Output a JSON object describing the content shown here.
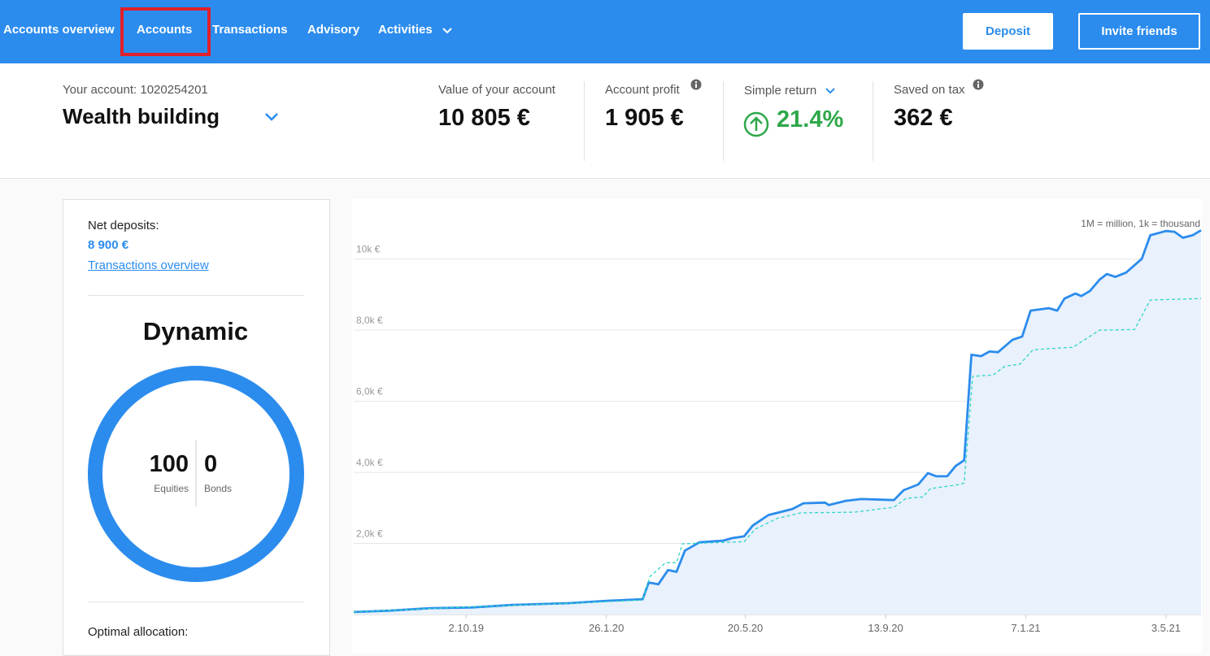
{
  "nav": {
    "items": [
      "Accounts overview",
      "Accounts",
      "Transactions",
      "Advisory",
      "Activities"
    ],
    "buttons": [
      "Deposit",
      "Invite friends"
    ]
  },
  "account": {
    "label": "Your account: 1020254201",
    "name": "Wealth building"
  },
  "stats": [
    {
      "label": "Value of your account",
      "value": "10 805 €"
    },
    {
      "label": "Account profit",
      "value": "1 905 €"
    },
    {
      "label": "Simple return",
      "value": "21.4%"
    },
    {
      "label": "Saved on tax",
      "value": "362 €"
    }
  ],
  "sidebar": {
    "net_deposits_label": "Net deposits:",
    "net_deposits": "8 900 €",
    "link": "Transactions overview",
    "strategy": "Dynamic",
    "equities": 100,
    "equities_label": "Equities",
    "bonds": 0,
    "bonds_label": "Bonds",
    "optimal": "Optimal allocation:"
  },
  "chart_data": {
    "type": "line",
    "note": "1M = million, 1k = thousand",
    "xlim": [
      "2019-07-01",
      "2021-06-01"
    ],
    "xticks": [
      {
        "value": "2019-10-02",
        "label": "2.10.19"
      },
      {
        "value": "2020-01-26",
        "label": "26.1.20"
      },
      {
        "value": "2020-05-20",
        "label": "20.5.20"
      },
      {
        "value": "2020-09-13",
        "label": "13.9.20"
      },
      {
        "value": "2021-01-07",
        "label": "7.1.21"
      },
      {
        "value": "2021-05-03",
        "label": "3.5.21"
      }
    ],
    "ylim": [
      0,
      11000
    ],
    "yticks": [
      {
        "value": 2000,
        "label": "2,0k €"
      },
      {
        "value": 4000,
        "label": "4,0k €"
      },
      {
        "value": 6000,
        "label": "6,0k €"
      },
      {
        "value": 8000,
        "label": "8,0k €"
      },
      {
        "value": 10000,
        "label": "10k €"
      }
    ],
    "grid": true,
    "series": [
      {
        "color": "#2b8ced",
        "style": "solid",
        "area": "#e8f1fc",
        "x": [
          "2019-07-01",
          "2019-07-31",
          "2019-09-03",
          "2019-10-06",
          "2019-11-09",
          "2019-12-26",
          "2020-01-29",
          "2020-02-25",
          "2020-03-01",
          "2020-03-09",
          "2020-03-17",
          "2020-03-24",
          "2020-03-31",
          "2020-04-12",
          "2020-05-02",
          "2020-05-09",
          "2020-05-19",
          "2020-05-26",
          "2020-06-08",
          "2020-06-28",
          "2020-07-07",
          "2020-07-25",
          "2020-07-28",
          "2020-08-11",
          "2020-08-24",
          "2020-09-20",
          "2020-09-28",
          "2020-10-10",
          "2020-10-18",
          "2020-10-25",
          "2020-11-03",
          "2020-11-10",
          "2020-11-17",
          "2020-11-23",
          "2020-12-01",
          "2020-12-08",
          "2020-12-15",
          "2020-12-27",
          "2021-01-04",
          "2021-01-11",
          "2021-01-26",
          "2021-02-02",
          "2021-02-08",
          "2021-02-17",
          "2021-02-22",
          "2021-03-01",
          "2021-03-09",
          "2021-03-15",
          "2021-03-22",
          "2021-03-31",
          "2021-04-13",
          "2021-04-20",
          "2021-05-03",
          "2021-05-10",
          "2021-05-17",
          "2021-05-25",
          "2021-06-01"
        ],
        "values": [
          70,
          110,
          180,
          200,
          270,
          320,
          390,
          430,
          900,
          850,
          1250,
          1200,
          1800,
          2030,
          2080,
          2150,
          2200,
          2500,
          2800,
          2970,
          3130,
          3150,
          3080,
          3200,
          3250,
          3220,
          3500,
          3660,
          3980,
          3890,
          3890,
          4180,
          4340,
          7310,
          7270,
          7400,
          7380,
          7730,
          7820,
          8550,
          8620,
          8550,
          8890,
          9030,
          8960,
          9100,
          9420,
          9580,
          9500,
          9620,
          10010,
          10670,
          10790,
          10770,
          10600,
          10670,
          10810
        ]
      },
      {
        "color": "#2fd6c4",
        "style": "dashed",
        "x": [
          "2019-07-01",
          "2019-09-03",
          "2019-11-09",
          "2019-12-26",
          "2020-02-25",
          "2020-03-02",
          "2020-03-15",
          "2020-03-24",
          "2020-03-29",
          "2020-05-19",
          "2020-05-28",
          "2020-06-15",
          "2020-07-05",
          "2020-08-18",
          "2020-09-20",
          "2020-09-30",
          "2020-10-14",
          "2020-10-20",
          "2020-11-13",
          "2020-11-17",
          "2020-11-24",
          "2020-12-11",
          "2020-12-21",
          "2021-01-02",
          "2021-01-13",
          "2021-02-15",
          "2021-03-09",
          "2021-04-07",
          "2021-04-20",
          "2021-06-01"
        ],
        "values": [
          70,
          170,
          260,
          310,
          410,
          1070,
          1460,
          1460,
          1990,
          2050,
          2400,
          2700,
          2860,
          2880,
          3020,
          3270,
          3310,
          3540,
          3660,
          3700,
          6700,
          6740,
          6990,
          7040,
          7450,
          7520,
          8000,
          8020,
          8850,
          8890
        ]
      }
    ]
  }
}
